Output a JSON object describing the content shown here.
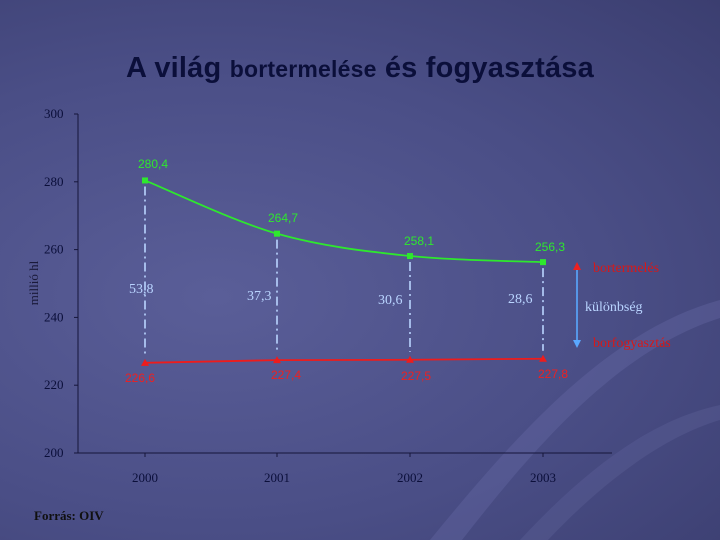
{
  "title_part1": "A világ",
  "title_part2": "bortermelése",
  "title_part3": "és fogyasztása",
  "source": "Forrás: OIV",
  "colors": {
    "production": "#2ee82e",
    "consumption": "#ee1c1c",
    "difference": "#b9d4ff",
    "axis": "#15153a"
  },
  "chart_data": {
    "type": "line",
    "ylabel": "millió hl",
    "ylim": [
      200,
      300
    ],
    "yticks": [
      "200",
      "220",
      "240",
      "260",
      "280",
      "300"
    ],
    "categories": [
      "2000",
      "2001",
      "2002",
      "2003"
    ],
    "series": [
      {
        "name": "bortermelés",
        "values": [
          280.4,
          264.7,
          258.1,
          256.3
        ],
        "labels": [
          "280,4",
          "264,7",
          "258,1",
          "256,3"
        ]
      },
      {
        "name": "borfogyasztás",
        "values": [
          226.6,
          227.4,
          227.5,
          227.8
        ],
        "labels": [
          "226,6",
          "227,4",
          "227,5",
          "227,8"
        ]
      }
    ],
    "difference": {
      "name": "különbség",
      "labels": [
        "53,8",
        "37,3",
        "30,6",
        "28,6"
      ]
    }
  }
}
